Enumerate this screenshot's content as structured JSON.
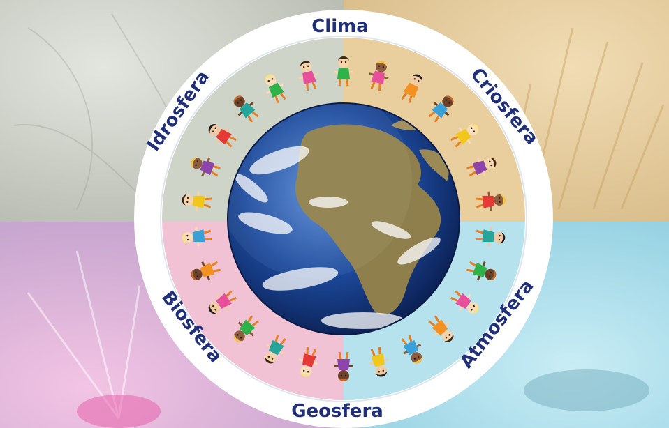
{
  "ring_labels": {
    "clima": "Clima",
    "criosfera": "Criosfera",
    "atmosfera": "Atmosfera",
    "geosfera": "Geosfera",
    "biosfera": "Biosfera",
    "idrosfera": "Idrosfera"
  },
  "colors": {
    "label_text": "#1f2f7a",
    "ring": "#ffffff",
    "quadrant_top_left": "#c9cfc4",
    "quadrant_top_right": "#e6cfa6",
    "quadrant_bottom_left": "#d7bcd9",
    "quadrant_bottom_right": "#a9dbe8",
    "globe_ocean": "#1c4a9c",
    "globe_land": "#8a7a4a"
  },
  "icons": {
    "center": "earth-globe",
    "ring_figures": "children-holding-hands"
  }
}
